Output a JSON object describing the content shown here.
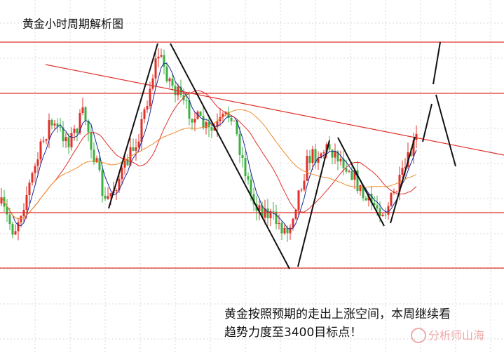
{
  "title": "黄金小时周期解析图",
  "annotation": [
    "黄金按照预期的走出上涨空间，本周继续看",
    "趋势力度至3400目标点！"
  ],
  "watermark": "分析师山海"
}
